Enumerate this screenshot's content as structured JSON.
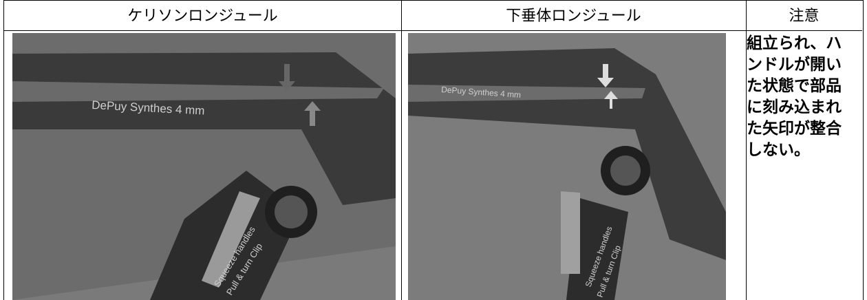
{
  "table": {
    "headers": [
      "ケリソンロンジュール",
      "下垂体ロンジュール",
      "注意"
    ],
    "photos": [
      {
        "engraving": "DePuy Synthes  4 mm",
        "handle_text": [
          "Squeeze handles",
          "Pull & turn Clip"
        ]
      },
      {
        "engraving": "DePuy Synthes  4 mm",
        "handle_text": [
          "Squeeze handles",
          "Pull & turn Clip"
        ]
      }
    ],
    "note": "組立られ、ハンドルが開いた状態で部品に刻み込まれた矢印が整合しない。"
  }
}
